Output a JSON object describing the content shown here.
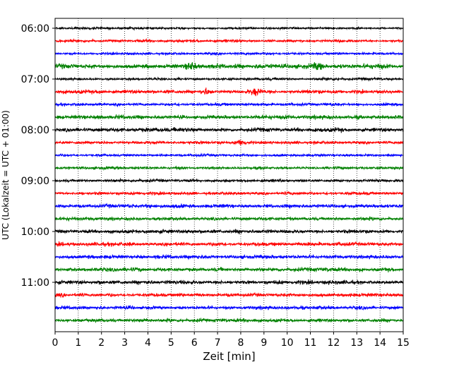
{
  "chart_data": {
    "type": "line",
    "title": "",
    "xlabel": "Zeit  [min]",
    "ylabel": "UTC (Lokalzeit = UTC + 01:00)",
    "xlim": [
      0,
      15
    ],
    "x_ticks": [
      "0",
      "1",
      "2",
      "3",
      "4",
      "5",
      "6",
      "7",
      "8",
      "9",
      "10",
      "11",
      "12",
      "13",
      "14",
      "15"
    ],
    "y_tick_labels": [
      "06:00",
      "07:00",
      "08:00",
      "09:00",
      "10:00",
      "11:00"
    ],
    "grid": "vertical dotted",
    "trace_colors": [
      "#000000",
      "#ff0000",
      "#0000ff",
      "#008000"
    ],
    "series": [
      {
        "start": "06:00",
        "amplitude": 0.45
      },
      {
        "start": "06:15",
        "amplitude": 0.55
      },
      {
        "start": "06:30",
        "amplitude": 0.5
      },
      {
        "start": "06:45",
        "amplitude": 0.95,
        "events_min": [
          5.9,
          11.3
        ]
      },
      {
        "start": "07:00",
        "amplitude": 0.5
      },
      {
        "start": "07:15",
        "amplitude": 0.75,
        "events_min": [
          6.5,
          8.6
        ]
      },
      {
        "start": "07:30",
        "amplitude": 0.55
      },
      {
        "start": "07:45",
        "amplitude": 0.8
      },
      {
        "start": "08:00",
        "amplitude": 0.9
      },
      {
        "start": "08:15",
        "amplitude": 0.6,
        "events_min": [
          8.0
        ]
      },
      {
        "start": "08:30",
        "amplitude": 0.5
      },
      {
        "start": "08:45",
        "amplitude": 0.55
      },
      {
        "start": "09:00",
        "amplitude": 0.6
      },
      {
        "start": "09:15",
        "amplitude": 0.6
      },
      {
        "start": "09:30",
        "amplitude": 0.75
      },
      {
        "start": "09:45",
        "amplitude": 0.7
      },
      {
        "start": "10:00",
        "amplitude": 0.8
      },
      {
        "start": "10:15",
        "amplitude": 0.75
      },
      {
        "start": "10:30",
        "amplitude": 0.75
      },
      {
        "start": "10:45",
        "amplitude": 0.75
      },
      {
        "start": "11:00",
        "amplitude": 0.8
      },
      {
        "start": "11:15",
        "amplitude": 0.75
      },
      {
        "start": "11:30",
        "amplitude": 0.7
      },
      {
        "start": "11:45",
        "amplitude": 0.7
      }
    ]
  }
}
